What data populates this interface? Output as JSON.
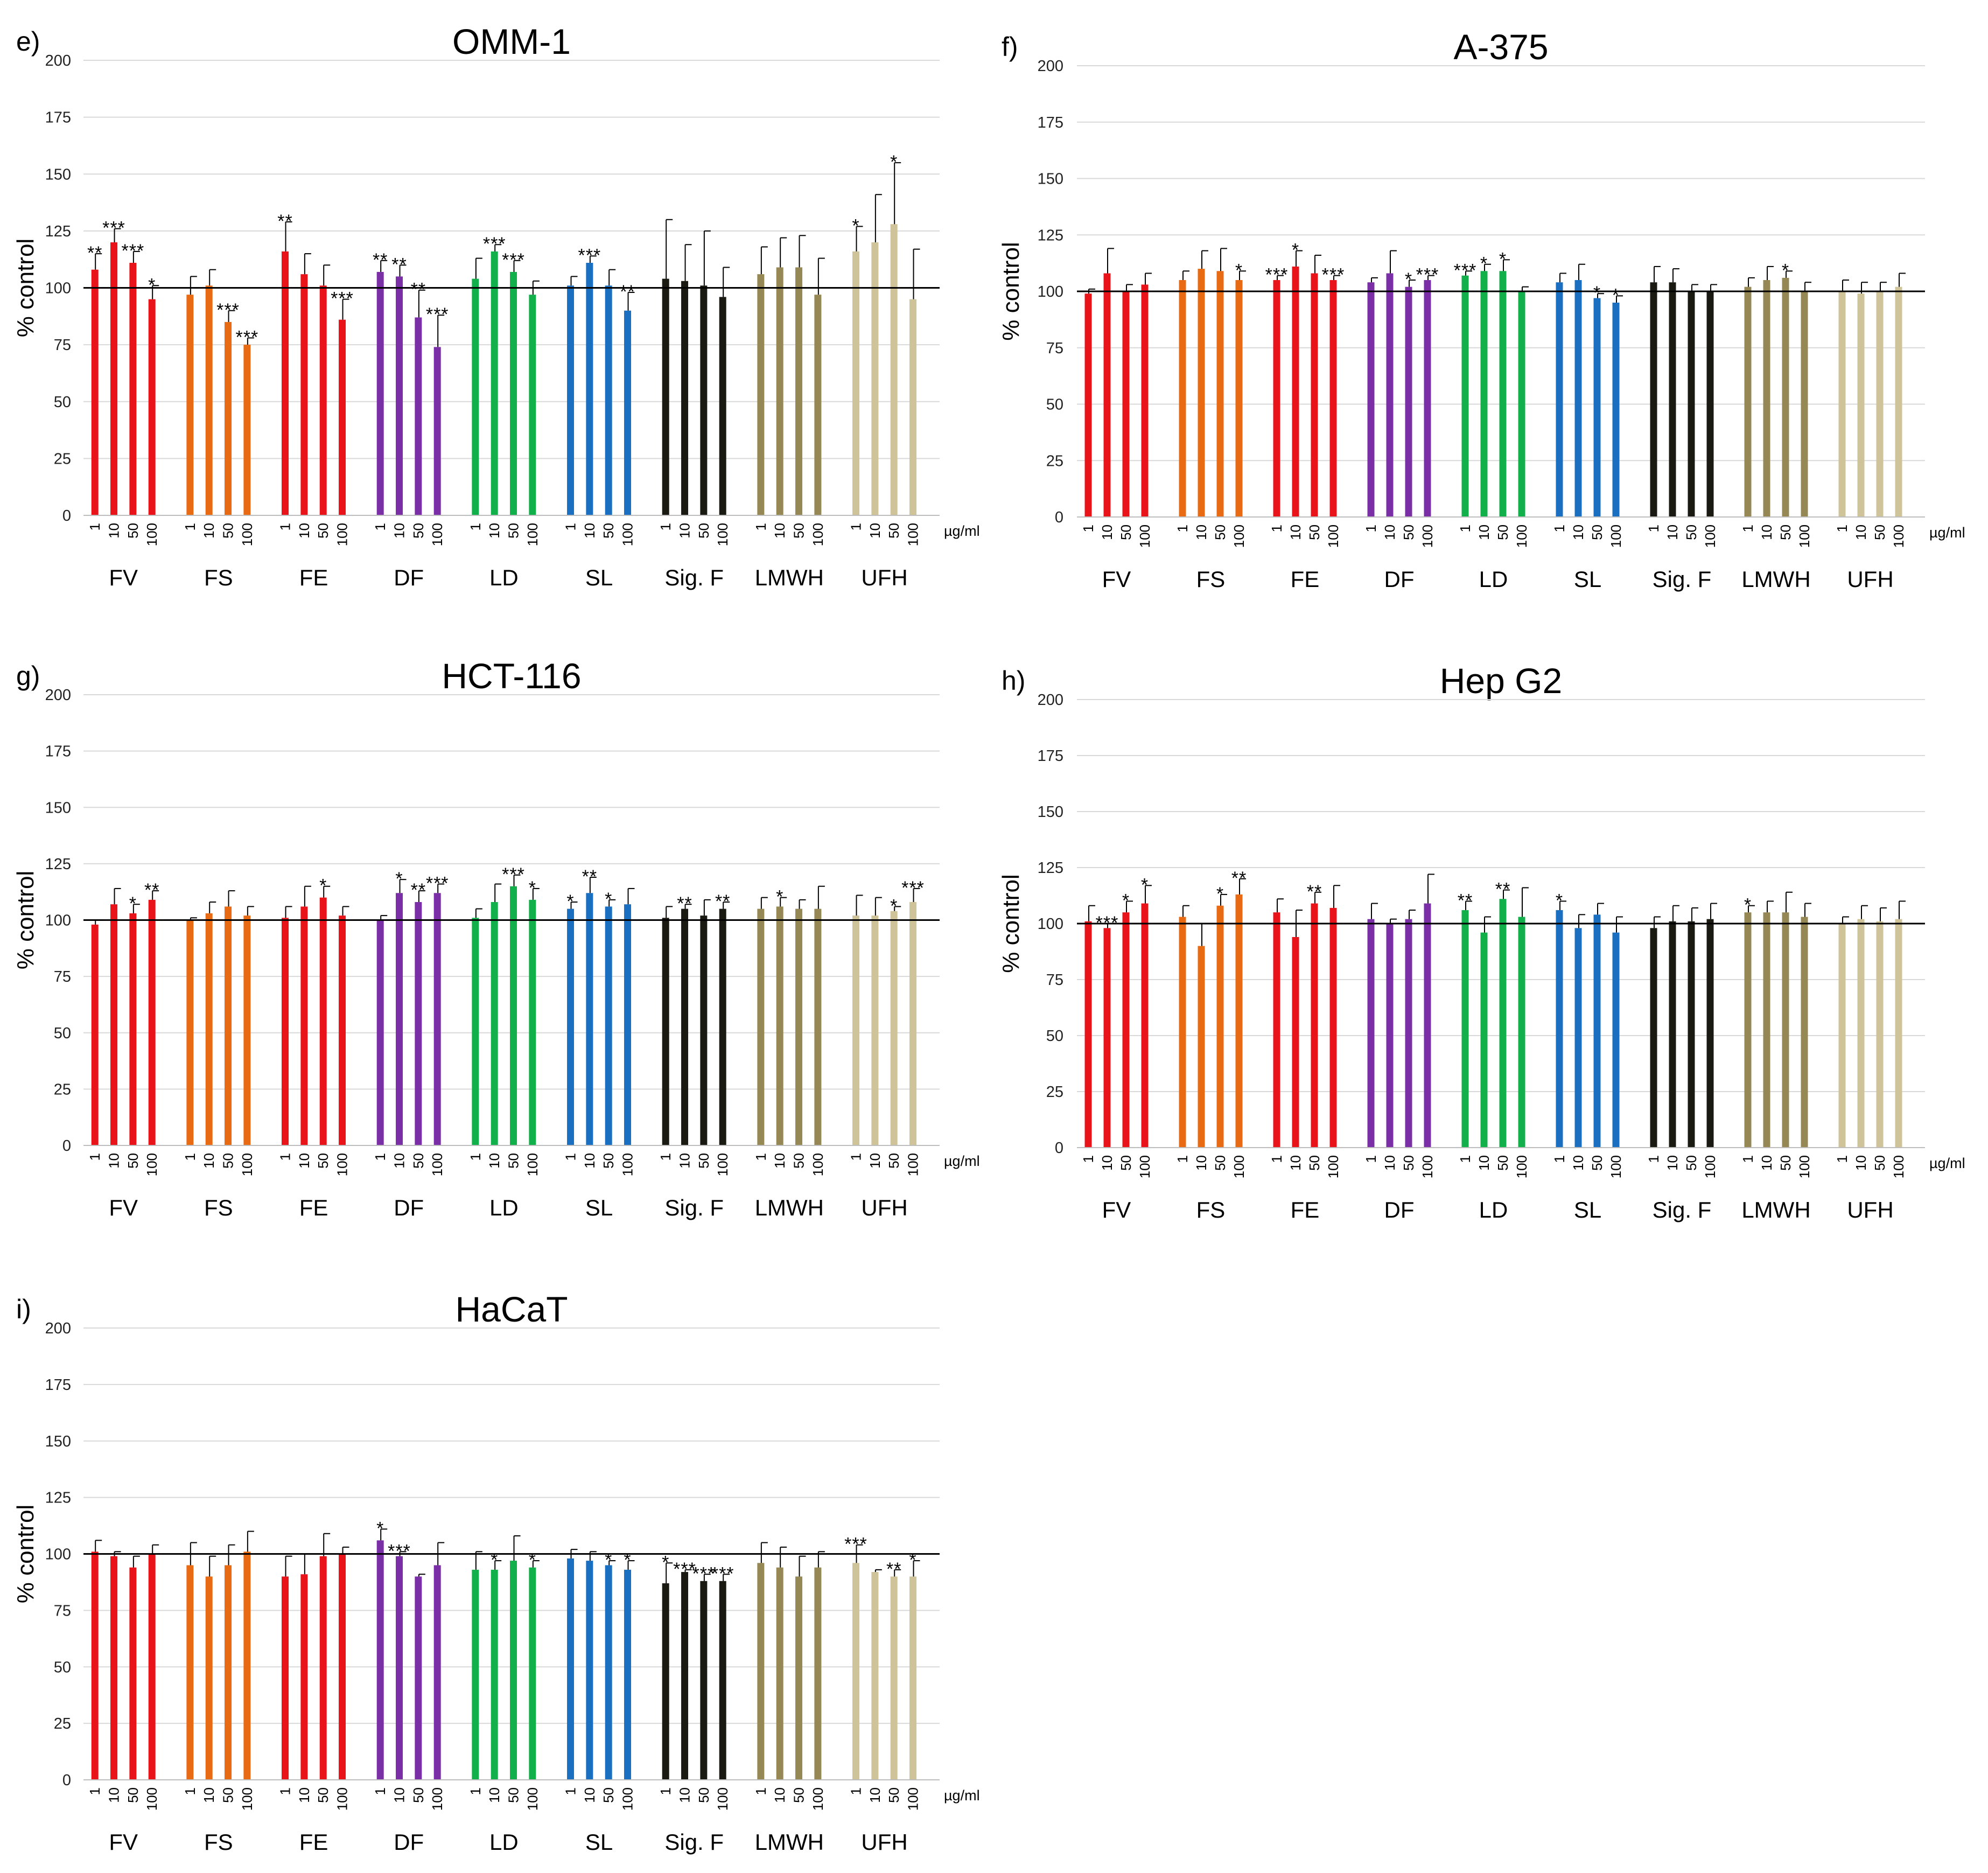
{
  "figure": {
    "unit_label": "µg/ml",
    "y_axis_label": "% control",
    "concentrations": [
      "1",
      "10",
      "50",
      "100"
    ],
    "series_colors": {
      "FV": "#e8141a",
      "FS": "#e86a12",
      "FE": "#e8141a",
      "DF": "#7b2fa6",
      "LD": "#12b04a",
      "SL": "#1a6fc0",
      "Sig. F": "#1a1a12",
      "LMWH": "#958855",
      "UFH": "#cfc39a"
    }
  },
  "chart_data": [
    {
      "type": "bar",
      "panel_label": "e)",
      "title": "OMM-1",
      "ylabel": "% control",
      "xlabel": "µg/ml",
      "ylim": [
        0,
        200
      ],
      "yticks": [
        0,
        25,
        50,
        75,
        100,
        125,
        150,
        175,
        200
      ],
      "reference_line": 100,
      "groups": [
        {
          "name": "FV",
          "values": [
            108,
            120,
            111,
            95
          ],
          "errors": [
            7,
            6,
            5,
            6
          ],
          "sig": [
            "**",
            "***",
            "***",
            "*"
          ]
        },
        {
          "name": "FS",
          "values": [
            97,
            101,
            85,
            75
          ],
          "errors": [
            8,
            7,
            5,
            3
          ],
          "sig": [
            "",
            "",
            "***",
            "***"
          ]
        },
        {
          "name": "FE",
          "values": [
            116,
            106,
            101,
            86
          ],
          "errors": [
            13,
            9,
            9,
            9
          ],
          "sig": [
            "**",
            "",
            "",
            "***"
          ]
        },
        {
          "name": "DF",
          "values": [
            107,
            105,
            87,
            74
          ],
          "errors": [
            5,
            5,
            12,
            14
          ],
          "sig": [
            "**",
            "**",
            "**",
            "***"
          ]
        },
        {
          "name": "LD",
          "values": [
            104,
            116,
            107,
            97
          ],
          "errors": [
            9,
            3,
            5,
            6
          ],
          "sig": [
            "",
            "***",
            "***",
            ""
          ]
        },
        {
          "name": "SL",
          "values": [
            101,
            111,
            101,
            90
          ],
          "errors": [
            4,
            3,
            7,
            8
          ],
          "sig": [
            "",
            "***",
            "",
            "**"
          ]
        },
        {
          "name": "Sig. F",
          "values": [
            104,
            103,
            101,
            96
          ],
          "errors": [
            26,
            16,
            24,
            13
          ],
          "sig": [
            "",
            "",
            "",
            ""
          ]
        },
        {
          "name": "LMWH",
          "values": [
            106,
            109,
            109,
            97
          ],
          "errors": [
            12,
            13,
            14,
            16
          ],
          "sig": [
            "",
            "",
            "",
            ""
          ]
        },
        {
          "name": "UFH",
          "values": [
            116,
            120,
            128,
            95
          ],
          "errors": [
            11,
            21,
            27,
            22
          ],
          "sig": [
            "*",
            "",
            "*",
            ""
          ]
        }
      ]
    },
    {
      "type": "bar",
      "panel_label": "f)",
      "title": "A-375",
      "ylabel": "% control",
      "xlabel": "µg/ml",
      "ylim": [
        0,
        200
      ],
      "yticks": [
        0,
        25,
        50,
        75,
        100,
        125,
        150,
        175,
        200
      ],
      "reference_line": 100,
      "groups": [
        {
          "name": "FV",
          "values": [
            99,
            108,
            100,
            103
          ],
          "errors": [
            2,
            11,
            3,
            5
          ],
          "sig": [
            "",
            "",
            "",
            ""
          ]
        },
        {
          "name": "FS",
          "values": [
            105,
            110,
            109,
            105
          ],
          "errors": [
            4,
            8,
            10,
            4
          ],
          "sig": [
            "",
            "",
            "",
            "*"
          ]
        },
        {
          "name": "FE",
          "values": [
            105,
            111,
            108,
            105
          ],
          "errors": [
            2,
            7,
            8,
            2
          ],
          "sig": [
            "***",
            "*",
            "",
            "***"
          ]
        },
        {
          "name": "DF",
          "values": [
            104,
            108,
            102,
            105
          ],
          "errors": [
            2,
            10,
            3,
            2
          ],
          "sig": [
            "",
            "",
            "*",
            "***"
          ]
        },
        {
          "name": "LD",
          "values": [
            107,
            109,
            109,
            100
          ],
          "errors": [
            2,
            3,
            5,
            2
          ],
          "sig": [
            "***",
            "*",
            "*",
            ""
          ]
        },
        {
          "name": "SL",
          "values": [
            104,
            105,
            97,
            95
          ],
          "errors": [
            4,
            7,
            2,
            3
          ],
          "sig": [
            "",
            "",
            "*",
            "*"
          ]
        },
        {
          "name": "Sig. F",
          "values": [
            104,
            104,
            100,
            100
          ],
          "errors": [
            7,
            6,
            3,
            3
          ],
          "sig": [
            "",
            "",
            "",
            ""
          ]
        },
        {
          "name": "LMWH",
          "values": [
            102,
            105,
            106,
            100
          ],
          "errors": [
            4,
            6,
            3,
            4
          ],
          "sig": [
            "",
            "",
            "*",
            ""
          ]
        },
        {
          "name": "UFH",
          "values": [
            100,
            99,
            100,
            102
          ],
          "errors": [
            5,
            5,
            4,
            6
          ],
          "sig": [
            "",
            "",
            "",
            ""
          ]
        }
      ]
    },
    {
      "type": "bar",
      "panel_label": "g)",
      "title": "HCT-116",
      "ylabel": "% control",
      "xlabel": "µg/ml",
      "ylim": [
        0,
        200
      ],
      "yticks": [
        0,
        25,
        50,
        75,
        100,
        125,
        150,
        175,
        200
      ],
      "reference_line": 100,
      "groups": [
        {
          "name": "FV",
          "values": [
            98,
            107,
            103,
            109
          ],
          "errors": [
            2,
            7,
            4,
            4
          ],
          "sig": [
            "",
            "",
            "*",
            "**"
          ]
        },
        {
          "name": "FS",
          "values": [
            100,
            103,
            106,
            102
          ],
          "errors": [
            1,
            5,
            7,
            4
          ],
          "sig": [
            "",
            "",
            "",
            ""
          ]
        },
        {
          "name": "FE",
          "values": [
            101,
            106,
            110,
            102
          ],
          "errors": [
            5,
            9,
            5,
            4
          ],
          "sig": [
            "",
            "",
            "*",
            ""
          ]
        },
        {
          "name": "DF",
          "values": [
            100,
            112,
            108,
            112
          ],
          "errors": [
            2,
            6,
            5,
            4
          ],
          "sig": [
            "",
            "*",
            "**",
            "***"
          ]
        },
        {
          "name": "LD",
          "values": [
            101,
            108,
            115,
            109
          ],
          "errors": [
            4,
            8,
            5,
            5
          ],
          "sig": [
            "",
            "",
            "***",
            "*"
          ]
        },
        {
          "name": "SL",
          "values": [
            105,
            112,
            106,
            107
          ],
          "errors": [
            3,
            7,
            3,
            7
          ],
          "sig": [
            "*",
            "**",
            "*",
            ""
          ]
        },
        {
          "name": "Sig. F",
          "values": [
            101,
            105,
            102,
            105
          ],
          "errors": [
            5,
            2,
            7,
            3
          ],
          "sig": [
            "",
            "**",
            "",
            "**"
          ]
        },
        {
          "name": "LMWH",
          "values": [
            105,
            106,
            105,
            105
          ],
          "errors": [
            5,
            4,
            4,
            10
          ],
          "sig": [
            "",
            "*",
            "",
            ""
          ]
        },
        {
          "name": "UFH",
          "values": [
            102,
            102,
            104,
            108
          ],
          "errors": [
            9,
            8,
            2,
            6
          ],
          "sig": [
            "",
            "",
            "*",
            "***"
          ]
        }
      ]
    },
    {
      "type": "bar",
      "panel_label": "h)",
      "title": "Hep G2",
      "ylabel": "% control",
      "xlabel": "µg/ml",
      "ylim": [
        0,
        200
      ],
      "yticks": [
        0,
        25,
        50,
        75,
        100,
        125,
        150,
        175,
        200
      ],
      "reference_line": 100,
      "groups": [
        {
          "name": "FV",
          "values": [
            101,
            98,
            105,
            109
          ],
          "errors": [
            7,
            2,
            5,
            8
          ],
          "sig": [
            "",
            "***",
            "*",
            "*"
          ]
        },
        {
          "name": "FS",
          "values": [
            103,
            90,
            108,
            113
          ],
          "errors": [
            5,
            10,
            5,
            7
          ],
          "sig": [
            "",
            "",
            "*",
            "**"
          ]
        },
        {
          "name": "FE",
          "values": [
            105,
            94,
            109,
            107
          ],
          "errors": [
            6,
            12,
            5,
            10
          ],
          "sig": [
            "",
            "",
            "**",
            ""
          ]
        },
        {
          "name": "DF",
          "values": [
            102,
            100,
            102,
            109
          ],
          "errors": [
            7,
            2,
            4,
            13
          ],
          "sig": [
            "",
            "",
            "",
            ""
          ]
        },
        {
          "name": "LD",
          "values": [
            106,
            96,
            111,
            103
          ],
          "errors": [
            4,
            7,
            4,
            13
          ],
          "sig": [
            "**",
            "",
            "**",
            ""
          ]
        },
        {
          "name": "SL",
          "values": [
            106,
            98,
            104,
            96
          ],
          "errors": [
            4,
            6,
            5,
            7
          ],
          "sig": [
            "*",
            "",
            "",
            ""
          ]
        },
        {
          "name": "Sig. F",
          "values": [
            98,
            101,
            101,
            102
          ],
          "errors": [
            5,
            7,
            6,
            7
          ],
          "sig": [
            "",
            "",
            "",
            ""
          ]
        },
        {
          "name": "LMWH",
          "values": [
            105,
            105,
            105,
            103
          ],
          "errors": [
            3,
            5,
            9,
            6
          ],
          "sig": [
            "*",
            "",
            "",
            ""
          ]
        },
        {
          "name": "UFH",
          "values": [
            100,
            102,
            101,
            102
          ],
          "errors": [
            3,
            6,
            6,
            8
          ],
          "sig": [
            "",
            "",
            "",
            ""
          ]
        }
      ]
    },
    {
      "type": "bar",
      "panel_label": "i)",
      "title": "HaCaT",
      "ylabel": "% control",
      "xlabel": "µg/ml",
      "ylim": [
        0,
        200
      ],
      "yticks": [
        0,
        25,
        50,
        75,
        100,
        125,
        150,
        175,
        200
      ],
      "reference_line": 100,
      "groups": [
        {
          "name": "FV",
          "values": [
            101,
            99,
            94,
            100
          ],
          "errors": [
            5,
            2,
            5,
            4
          ],
          "sig": [
            "",
            "",
            "",
            ""
          ]
        },
        {
          "name": "FS",
          "values": [
            95,
            90,
            95,
            101
          ],
          "errors": [
            10,
            9,
            9,
            9
          ],
          "sig": [
            "",
            "",
            "",
            ""
          ]
        },
        {
          "name": "FE",
          "values": [
            90,
            91,
            99,
            100
          ],
          "errors": [
            9,
            9,
            10,
            3
          ],
          "sig": [
            "",
            "",
            "",
            ""
          ]
        },
        {
          "name": "DF",
          "values": [
            106,
            99,
            90,
            95
          ],
          "errors": [
            5,
            2,
            1,
            10
          ],
          "sig": [
            "*",
            "***",
            "",
            ""
          ]
        },
        {
          "name": "LD",
          "values": [
            93,
            93,
            97,
            94
          ],
          "errors": [
            8,
            4,
            11,
            3
          ],
          "sig": [
            "",
            "*",
            "",
            "*"
          ]
        },
        {
          "name": "SL",
          "values": [
            98,
            97,
            95,
            93
          ],
          "errors": [
            4,
            4,
            2,
            4
          ],
          "sig": [
            "",
            "",
            "*",
            "*"
          ]
        },
        {
          "name": "Sig. F",
          "values": [
            87,
            92,
            88,
            88
          ],
          "errors": [
            9,
            1,
            3,
            3
          ],
          "sig": [
            "*",
            "***",
            "***",
            "***"
          ]
        },
        {
          "name": "LMWH",
          "values": [
            96,
            94,
            90,
            94
          ],
          "errors": [
            9,
            9,
            9,
            7
          ],
          "sig": [
            "",
            "",
            "",
            ""
          ]
        },
        {
          "name": "UFH",
          "values": [
            96,
            92,
            90,
            90
          ],
          "errors": [
            8,
            1,
            3,
            7
          ],
          "sig": [
            "***",
            "",
            "**",
            "*"
          ]
        }
      ]
    }
  ]
}
